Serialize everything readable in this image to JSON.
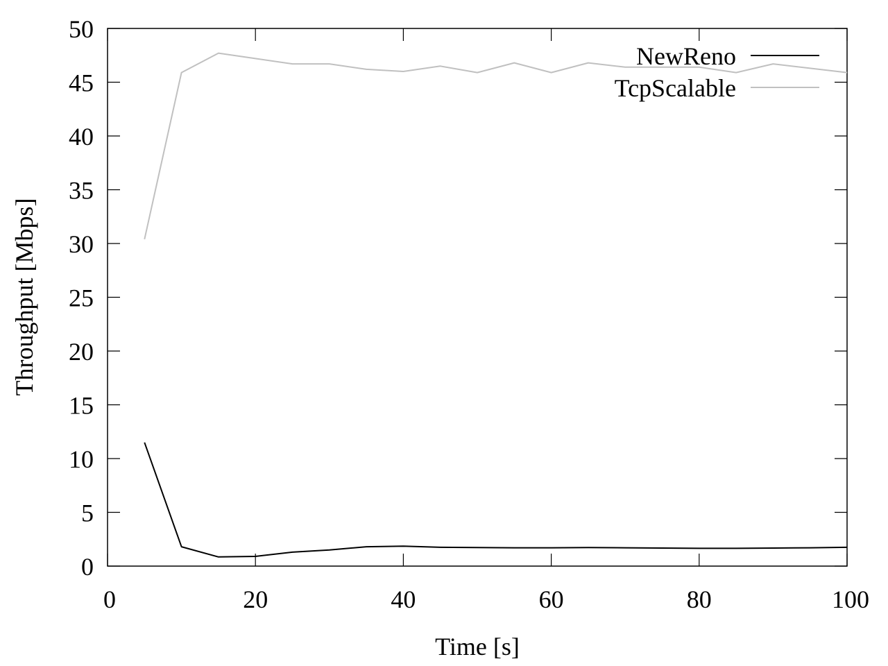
{
  "chart_data": {
    "type": "line",
    "title": "",
    "xlabel": "Time [s]",
    "ylabel": "Throughput [Mbps]",
    "xlim": [
      0,
      100
    ],
    "ylim": [
      0,
      50
    ],
    "xticks": [
      0,
      20,
      40,
      60,
      80,
      100
    ],
    "yticks": [
      0,
      5,
      10,
      15,
      20,
      25,
      30,
      35,
      40,
      45,
      50
    ],
    "grid": false,
    "legend_position": "top-right",
    "x": [
      5,
      10,
      15,
      20,
      25,
      30,
      35,
      40,
      45,
      50,
      55,
      60,
      65,
      70,
      75,
      80,
      85,
      90,
      95,
      100
    ],
    "series": [
      {
        "name": "NewReno",
        "color": "#000000",
        "values": [
          11.5,
          1.8,
          0.85,
          0.9,
          1.3,
          1.5,
          1.8,
          1.85,
          1.75,
          1.72,
          1.7,
          1.7,
          1.72,
          1.7,
          1.68,
          1.65,
          1.65,
          1.68,
          1.7,
          1.75
        ]
      },
      {
        "name": "TcpScalable",
        "color": "#c0c0c0",
        "values": [
          30.4,
          45.9,
          47.7,
          47.2,
          46.7,
          46.7,
          46.2,
          46.0,
          46.5,
          45.9,
          46.8,
          45.9,
          46.8,
          46.4,
          46.4,
          46.4,
          45.9,
          46.7,
          46.3,
          45.9
        ]
      }
    ]
  }
}
